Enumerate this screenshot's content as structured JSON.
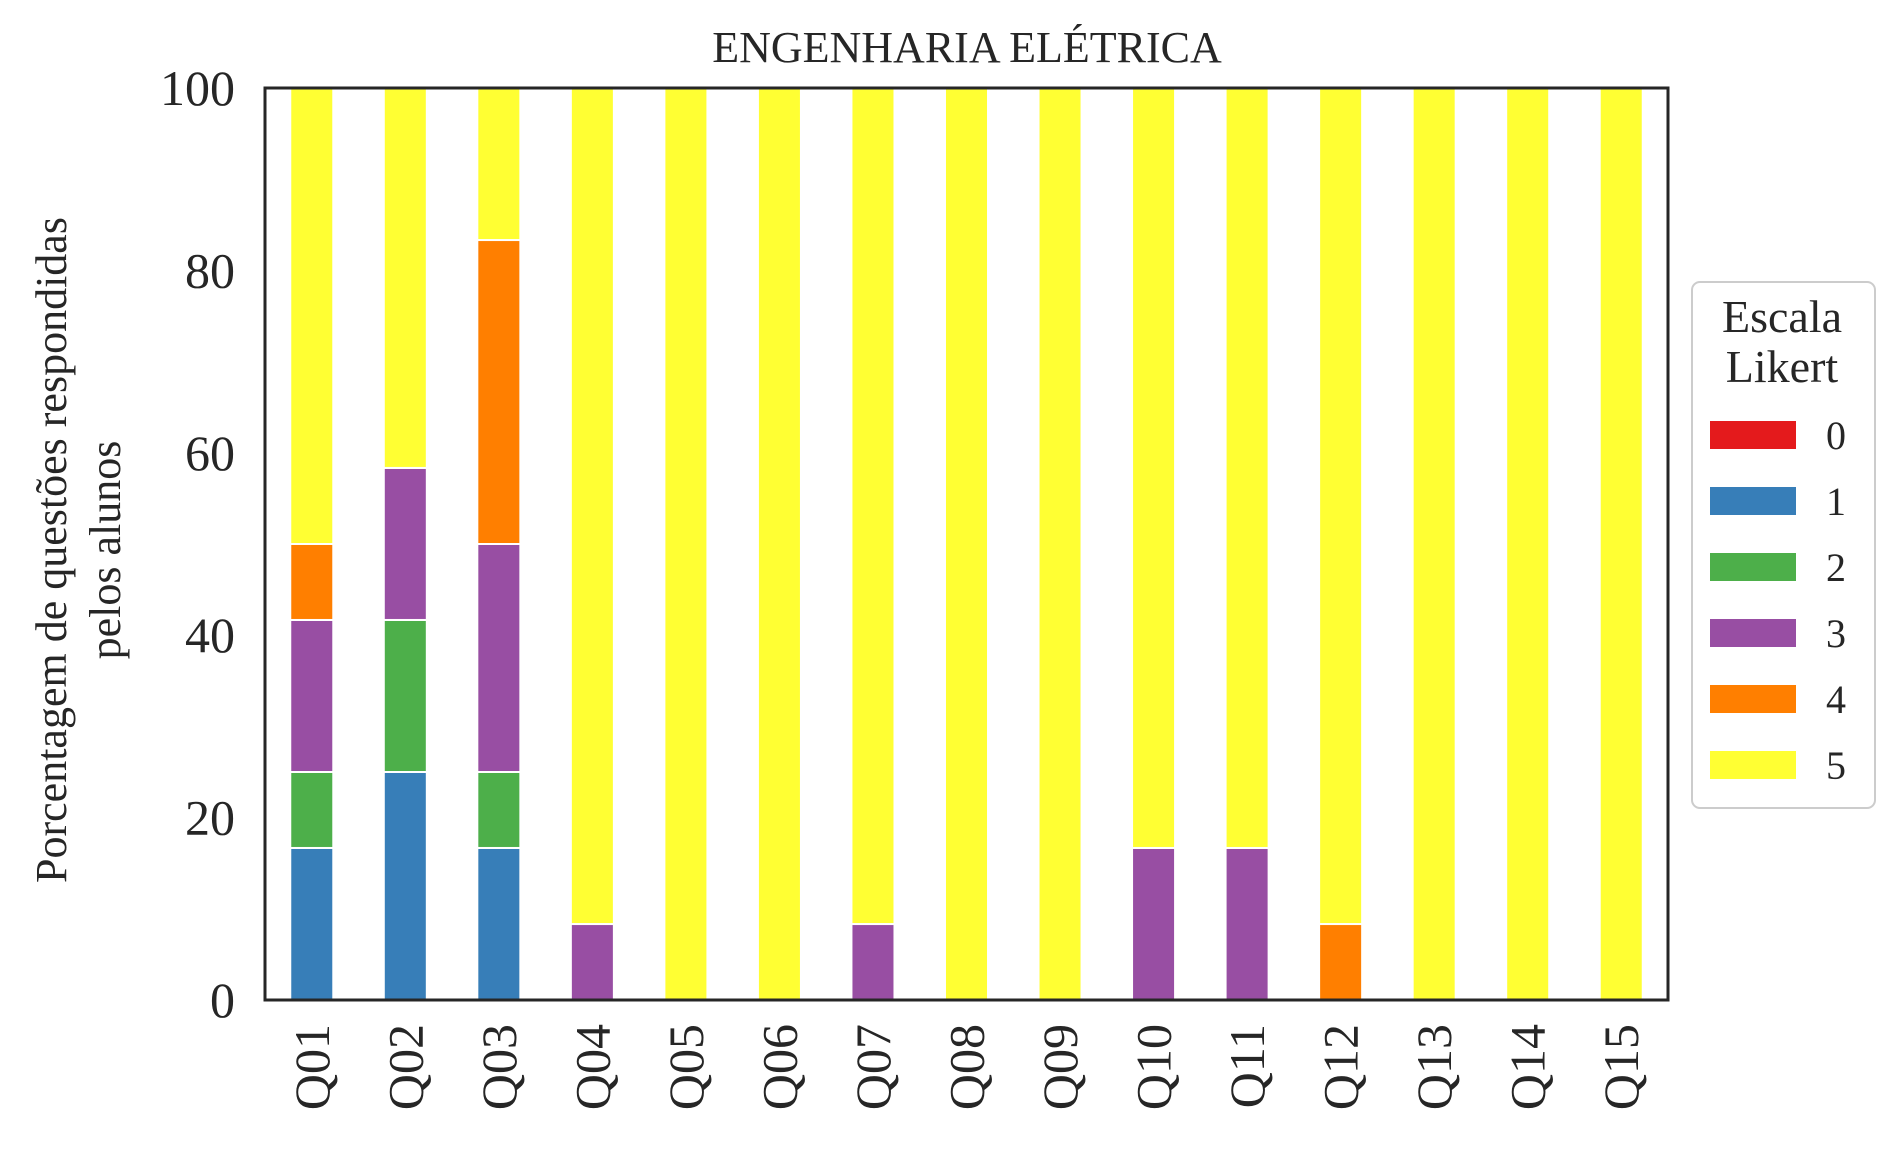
{
  "chart_data": {
    "type": "bar",
    "stacked": true,
    "title": "ENGENHARIA ELÉTRICA",
    "xlabel": "",
    "ylabel": [
      "Porcentagem de questões respondidas",
      "pelos alunos"
    ],
    "ylim": [
      0,
      100
    ],
    "yticks": [
      "0",
      "20",
      "40",
      "60",
      "80",
      "100"
    ],
    "grid": false,
    "legend": {
      "title": [
        "Escala",
        "Likert"
      ],
      "position": "right"
    },
    "categories": [
      "Q01",
      "Q02",
      "Q03",
      "Q04",
      "Q05",
      "Q06",
      "Q07",
      "Q08",
      "Q09",
      "Q10",
      "Q11",
      "Q12",
      "Q13",
      "Q14",
      "Q15"
    ],
    "series": [
      {
        "name": "0",
        "color": "#e41a1c",
        "values": [
          0,
          0,
          0,
          0,
          0,
          0,
          0,
          0,
          0,
          0,
          0,
          0,
          0,
          0,
          0
        ]
      },
      {
        "name": "1",
        "color": "#377eb8",
        "values": [
          16.67,
          25,
          16.67,
          0,
          0,
          0,
          0,
          0,
          0,
          0,
          0,
          0,
          0,
          0,
          0
        ]
      },
      {
        "name": "2",
        "color": "#4daf4a",
        "values": [
          8.33,
          16.67,
          8.33,
          0,
          0,
          0,
          0,
          0,
          0,
          0,
          0,
          0,
          0,
          0,
          0
        ]
      },
      {
        "name": "3",
        "color": "#984ea3",
        "values": [
          16.67,
          16.67,
          25,
          8.33,
          0,
          0,
          8.33,
          0,
          0,
          16.67,
          16.67,
          0,
          0,
          0,
          0
        ]
      },
      {
        "name": "4",
        "color": "#ff7f00",
        "values": [
          8.33,
          0,
          33.33,
          0,
          0,
          0,
          0,
          0,
          0,
          0,
          0,
          8.33,
          0,
          0,
          0
        ]
      },
      {
        "name": "5",
        "color": "#ffff33",
        "values": [
          50,
          41.67,
          16.67,
          91.67,
          100,
          100,
          91.67,
          100,
          100,
          83.33,
          83.33,
          91.67,
          100,
          100,
          100
        ]
      }
    ]
  }
}
